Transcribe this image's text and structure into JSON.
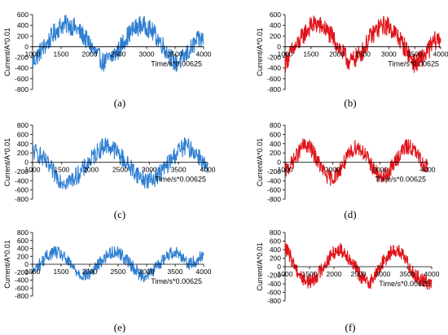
{
  "figure": {
    "captions": [
      "(a)",
      "(b)",
      "(c)",
      "(d)",
      "(e)",
      "(f)"
    ]
  },
  "colors": {
    "blue": "#2e7fd1",
    "red": "#e0141a",
    "axis": "#000000",
    "text": "#000000"
  },
  "chart_data": [
    {
      "type": "line",
      "xlabel": "Time/s*0.00625",
      "ylabel": "Current/A*0.01",
      "xlim": [
        1000,
        4000
      ],
      "ylim": [
        -800,
        600
      ],
      "x_ticks": [
        1000,
        1500,
        2000,
        2500,
        3000,
        3500,
        4000
      ],
      "y_ticks": [
        -800,
        -600,
        -400,
        -200,
        0,
        200,
        400,
        600
      ],
      "series": [
        {
          "color": "#2e7fd1",
          "x": [
            1000,
            1125,
            1250,
            1375,
            1500,
            1625,
            1750,
            1875,
            2000,
            2125,
            2250,
            2375,
            2500,
            2625,
            2750,
            2875,
            3000,
            3125,
            3250,
            3375,
            3500,
            3625,
            3750,
            3875,
            4000
          ],
          "y": [
            -300,
            -100,
            50,
            250,
            400,
            420,
            350,
            220,
            50,
            -150,
            -300,
            -200,
            -80,
            150,
            300,
            400,
            380,
            250,
            80,
            -120,
            -320,
            -230,
            -80,
            100,
            150
          ],
          "envelope": 180
        }
      ]
    },
    {
      "type": "line",
      "xlabel": "Time/s*0.00625",
      "ylabel": "Current/A*0.01",
      "xlim": [
        1000,
        4000
      ],
      "ylim": [
        -800,
        600
      ],
      "x_ticks": [
        1000,
        1500,
        2000,
        2500,
        3000,
        3500,
        4000
      ],
      "y_ticks": [
        -800,
        -600,
        -400,
        -200,
        0,
        200,
        400,
        600
      ],
      "series": [
        {
          "color": "#e0141a",
          "x": [
            1000,
            1125,
            1250,
            1375,
            1500,
            1625,
            1750,
            1875,
            2000,
            2125,
            2250,
            2375,
            2500,
            2625,
            2750,
            2875,
            3000,
            3125,
            3250,
            3375,
            3500,
            3625,
            3750,
            3875,
            4000
          ],
          "y": [
            -300,
            -100,
            50,
            250,
            400,
            420,
            350,
            220,
            50,
            -150,
            -300,
            -200,
            -80,
            150,
            300,
            400,
            380,
            250,
            80,
            -120,
            -320,
            -230,
            -80,
            100,
            150
          ],
          "envelope": 180
        }
      ]
    },
    {
      "type": "line",
      "xlabel": "Time/s*0.00625",
      "ylabel": "Current/A*0.01",
      "xlim": [
        1000,
        4000
      ],
      "ylim": [
        -800,
        800
      ],
      "x_ticks": [
        1000,
        1500,
        2000,
        2500,
        3000,
        3500,
        4000
      ],
      "y_ticks": [
        -800,
        -600,
        -400,
        -200,
        0,
        200,
        400,
        600,
        800
      ],
      "series": [
        {
          "color": "#2e7fd1",
          "x": [
            1000,
            1125,
            1250,
            1375,
            1500,
            1625,
            1750,
            1875,
            2000,
            2125,
            2250,
            2375,
            2500,
            2625,
            2750,
            2875,
            3000,
            3125,
            3250,
            3375,
            3500,
            3625,
            3750,
            3875,
            4000
          ],
          "y": [
            250,
            150,
            -50,
            -250,
            -400,
            -420,
            -300,
            -150,
            50,
            250,
            380,
            300,
            150,
            -50,
            -200,
            -350,
            -400,
            -300,
            -150,
            50,
            250,
            350,
            250,
            100,
            -200
          ],
          "envelope": 200
        }
      ]
    },
    {
      "type": "line",
      "xlabel": "Time/s*0.00625",
      "ylabel": "Current/A*0.01",
      "xlim": [
        1000,
        4000
      ],
      "ylim": [
        -800,
        800
      ],
      "x_ticks": [
        1000,
        2000,
        3000,
        4000
      ],
      "y_ticks": [
        -800,
        -600,
        -400,
        -200,
        0,
        200,
        400,
        600,
        800
      ],
      "series": [
        {
          "color": "#e0141a",
          "x": [
            1000,
            1125,
            1250,
            1375,
            1500,
            1625,
            1750,
            1875,
            2000,
            2125,
            2250,
            2375,
            2500,
            2625,
            2750,
            2875,
            3000,
            3125,
            3250,
            3375,
            3500,
            3625,
            3750,
            3875,
            4000
          ],
          "y": [
            -200,
            -50,
            150,
            350,
            350,
            150,
            -100,
            -300,
            -350,
            -200,
            0,
            200,
            350,
            250,
            50,
            -150,
            -350,
            -300,
            -100,
            100,
            300,
            350,
            200,
            0,
            -100
          ],
          "envelope": 170
        }
      ]
    },
    {
      "type": "line",
      "xlabel": "Time/s*0.00625",
      "ylabel": "Current/A*0.01",
      "xlim": [
        1000,
        4000
      ],
      "ylim": [
        -800,
        800
      ],
      "x_ticks": [
        1000,
        1500,
        2000,
        2500,
        3000,
        3500,
        4000
      ],
      "y_ticks": [
        -800,
        -600,
        -400,
        -200,
        0,
        200,
        400,
        600,
        800
      ],
      "series": [
        {
          "color": "#2e7fd1",
          "x": [
            1000,
            1125,
            1250,
            1375,
            1500,
            1625,
            1750,
            1875,
            2000,
            2125,
            2250,
            2375,
            2500,
            2625,
            2750,
            2875,
            3000,
            3125,
            3250,
            3375,
            3500,
            3625,
            3750,
            3875,
            4000
          ],
          "y": [
            -200,
            0,
            200,
            320,
            250,
            50,
            -150,
            -280,
            -250,
            -50,
            150,
            300,
            320,
            150,
            -50,
            -250,
            -300,
            -150,
            50,
            250,
            320,
            200,
            0,
            100,
            250
          ],
          "envelope": 160
        }
      ]
    },
    {
      "type": "line",
      "xlabel": "Time/s*0.00625",
      "ylabel": "Current/A*0.01",
      "xlim": [
        1000,
        4000
      ],
      "ylim": [
        -800,
        800
      ],
      "x_ticks": [
        1000,
        1500,
        2000,
        2500,
        3000,
        3500,
        4000
      ],
      "y_ticks": [
        -800,
        -600,
        -400,
        -200,
        0,
        200,
        400,
        600,
        800
      ],
      "series": [
        {
          "color": "#e0141a",
          "x": [
            1000,
            1125,
            1250,
            1375,
            1500,
            1625,
            1750,
            1875,
            2000,
            2125,
            2250,
            2375,
            2500,
            2625,
            2750,
            2875,
            3000,
            3125,
            3250,
            3375,
            3500,
            3625,
            3750,
            3875,
            4000
          ],
          "y": [
            450,
            200,
            -100,
            -300,
            -350,
            -250,
            -50,
            150,
            350,
            400,
            300,
            100,
            -150,
            -330,
            -350,
            -150,
            100,
            300,
            400,
            300,
            100,
            -150,
            -300,
            -350,
            -400
          ],
          "envelope": 170
        }
      ]
    }
  ]
}
